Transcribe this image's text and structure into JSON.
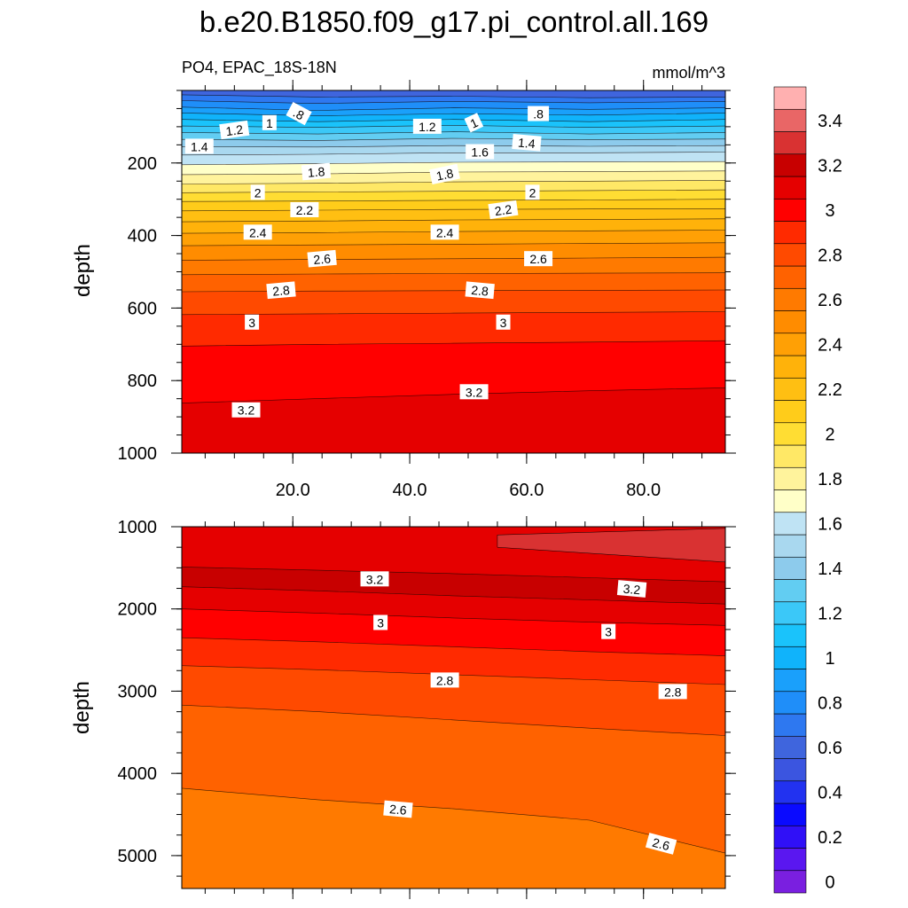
{
  "title": "b.e20.B1850.f09_g17.pi_control.all.169",
  "chart_data": [
    {
      "id": "upper",
      "type": "contour",
      "variable_label": "PO4, EPAC_18S-18N",
      "units": "mmol/m^3",
      "xlim": [
        1,
        94
      ],
      "x_ticks": [
        20,
        40,
        60,
        80
      ],
      "x_tick_labels": [
        "20.0",
        "40.0",
        "60.0",
        "80.0"
      ],
      "ylabel": "depth",
      "ylim": [
        0,
        1000
      ],
      "y_ticks": [
        200,
        400,
        600,
        800,
        1000
      ],
      "y_tick_labels": [
        "200",
        "400",
        "600",
        "800",
        "1000"
      ],
      "contours": [
        {
          "level": 0.6,
          "y": [
            0,
            0,
            0,
            0,
            0
          ]
        },
        {
          "level": 0.7,
          "y": [
            12,
            18,
            16,
            20,
            18
          ]
        },
        {
          "level": 0.8,
          "y": [
            28,
            36,
            30,
            34,
            30
          ]
        },
        {
          "level": 0.9,
          "y": [
            46,
            55,
            48,
            52,
            48
          ]
        },
        {
          "level": 1.0,
          "y": [
            62,
            70,
            64,
            68,
            62
          ]
        },
        {
          "level": 1.1,
          "y": [
            80,
            86,
            80,
            86,
            80
          ]
        },
        {
          "level": 1.2,
          "y": [
            98,
            102,
            96,
            102,
            98
          ]
        },
        {
          "level": 1.3,
          "y": [
            116,
            120,
            114,
            120,
            116
          ]
        },
        {
          "level": 1.4,
          "y": [
            135,
            138,
            132,
            136,
            134
          ]
        },
        {
          "level": 1.5,
          "y": [
            155,
            156,
            152,
            154,
            152
          ]
        },
        {
          "level": 1.6,
          "y": [
            178,
            176,
            172,
            172,
            170
          ]
        },
        {
          "level": 1.7,
          "y": [
            205,
            202,
            198,
            197,
            196
          ]
        },
        {
          "level": 1.8,
          "y": [
            232,
            230,
            225,
            224,
            222
          ]
        },
        {
          "level": 1.9,
          "y": [
            258,
            256,
            252,
            250,
            248
          ]
        },
        {
          "level": 2.0,
          "y": [
            282,
            280,
            278,
            276,
            274
          ]
        },
        {
          "level": 2.1,
          "y": [
            306,
            305,
            303,
            302,
            300
          ]
        },
        {
          "level": 2.2,
          "y": [
            332,
            330,
            328,
            327,
            326
          ]
        },
        {
          "level": 2.3,
          "y": [
            362,
            360,
            357,
            356,
            354
          ]
        },
        {
          "level": 2.4,
          "y": [
            394,
            392,
            389,
            387,
            385
          ]
        },
        {
          "level": 2.5,
          "y": [
            428,
            426,
            424,
            422,
            420
          ]
        },
        {
          "level": 2.6,
          "y": [
            468,
            466,
            464,
            462,
            460
          ]
        },
        {
          "level": 2.7,
          "y": [
            508,
            506,
            505,
            504,
            503
          ]
        },
        {
          "level": 2.8,
          "y": [
            555,
            553,
            552,
            551,
            550
          ]
        },
        {
          "level": 2.9,
          "y": [
            618,
            616,
            614,
            612,
            610
          ]
        },
        {
          "level": 3.0,
          "y": [
            705,
            700,
            697,
            694,
            690
          ]
        },
        {
          "level": 3.1,
          "y": [
            862,
            850,
            838,
            828,
            820
          ]
        }
      ],
      "contour_labels": [
        {
          "text": ".8",
          "x": 21,
          "y": 65,
          "angle": 28
        },
        {
          "text": "1",
          "x": 16,
          "y": 90,
          "angle": 0
        },
        {
          "text": "1.2",
          "x": 10,
          "y": 110,
          "angle": -8
        },
        {
          "text": "1.4",
          "x": 4,
          "y": 155,
          "angle": 0
        },
        {
          "text": "1.2",
          "x": 43,
          "y": 100,
          "angle": 0
        },
        {
          "text": "1",
          "x": 51,
          "y": 90,
          "angle": -25
        },
        {
          "text": ".8",
          "x": 62,
          "y": 65,
          "angle": 0
        },
        {
          "text": "1.4",
          "x": 60,
          "y": 145,
          "angle": 5
        },
        {
          "text": "1.6",
          "x": 52,
          "y": 170,
          "angle": 0
        },
        {
          "text": "1.8",
          "x": 24,
          "y": 225,
          "angle": -5
        },
        {
          "text": "1.8",
          "x": 46,
          "y": 232,
          "angle": -12
        },
        {
          "text": "2",
          "x": 14,
          "y": 282,
          "angle": 0
        },
        {
          "text": "2",
          "x": 61,
          "y": 282,
          "angle": 0
        },
        {
          "text": "2.2",
          "x": 22,
          "y": 330,
          "angle": 0
        },
        {
          "text": "2.2",
          "x": 56,
          "y": 330,
          "angle": -8
        },
        {
          "text": "2.4",
          "x": 14,
          "y": 392,
          "angle": 0
        },
        {
          "text": "2.4",
          "x": 46,
          "y": 392,
          "angle": 0
        },
        {
          "text": "2.6",
          "x": 25,
          "y": 465,
          "angle": -5
        },
        {
          "text": "2.6",
          "x": 62,
          "y": 465,
          "angle": 0
        },
        {
          "text": "2.8",
          "x": 18,
          "y": 552,
          "angle": -5
        },
        {
          "text": "2.8",
          "x": 52,
          "y": 552,
          "angle": 5
        },
        {
          "text": "3",
          "x": 13,
          "y": 640,
          "angle": 0
        },
        {
          "text": "3",
          "x": 56,
          "y": 640,
          "angle": 0
        },
        {
          "text": "3.2",
          "x": 12,
          "y": 882,
          "angle": 0
        },
        {
          "text": "3.2",
          "x": 51,
          "y": 832,
          "angle": 0
        }
      ]
    },
    {
      "id": "lower",
      "type": "contour",
      "variable_label": "",
      "units": "",
      "xlim": [
        1,
        94
      ],
      "x_ticks": [
        20,
        40,
        60,
        80
      ],
      "x_tick_labels": [],
      "ylabel": "depth",
      "ylim": [
        1000,
        5400
      ],
      "y_ticks": [
        1000,
        2000,
        3000,
        4000,
        5000
      ],
      "y_tick_labels": [
        "1000",
        "2000",
        "3000",
        "4000",
        "5000"
      ],
      "contours": [
        {
          "level": 3.1,
          "y": [
            1000,
            1000,
            1000,
            1000,
            1000
          ]
        },
        {
          "level": 3.2,
          "y": [
            1490,
            1530,
            1570,
            1620,
            1670
          ]
        },
        {
          "level": 3.1,
          "y": [
            1730,
            1780,
            1840,
            1890,
            1940
          ]
        },
        {
          "level": 3.0,
          "y": [
            2000,
            2050,
            2110,
            2160,
            2200
          ]
        },
        {
          "level": 2.9,
          "y": [
            2350,
            2400,
            2460,
            2520,
            2570
          ]
        },
        {
          "level": 2.8,
          "y": [
            2690,
            2740,
            2800,
            2860,
            2920
          ]
        },
        {
          "level": 2.7,
          "y": [
            3170,
            3250,
            3350,
            3450,
            3540
          ]
        },
        {
          "level": 2.6,
          "y": [
            4180,
            4320,
            4430,
            4570,
            4970
          ]
        }
      ],
      "contour_labels": [
        {
          "text": "3.2",
          "x": 34,
          "y": 1640,
          "angle": 0
        },
        {
          "text": "3.2",
          "x": 78,
          "y": 1760,
          "angle": 5
        },
        {
          "text": "3",
          "x": 35,
          "y": 2170,
          "angle": 0
        },
        {
          "text": "3",
          "x": 74,
          "y": 2280,
          "angle": 0
        },
        {
          "text": "2.8",
          "x": 46,
          "y": 2870,
          "angle": 0
        },
        {
          "text": "2.8",
          "x": 85,
          "y": 3010,
          "angle": 0
        },
        {
          "text": "2.6",
          "x": 38,
          "y": 4440,
          "angle": 5
        },
        {
          "text": "2.6",
          "x": 83,
          "y": 4860,
          "angle": 15
        }
      ]
    }
  ],
  "colorbar": {
    "levels": [
      0,
      0.1,
      0.2,
      0.3,
      0.4,
      0.5,
      0.6,
      0.7,
      0.8,
      0.9,
      1.0,
      1.1,
      1.2,
      1.3,
      1.4,
      1.5,
      1.6,
      1.7,
      1.8,
      1.9,
      2.0,
      2.1,
      2.2,
      2.3,
      2.4,
      2.5,
      2.6,
      2.7,
      2.8,
      2.9,
      3.0,
      3.1,
      3.2,
      3.3,
      3.4,
      3.5
    ],
    "tick_labels": [
      {
        "label": "3.4",
        "value": 3.4
      },
      {
        "label": "3.2",
        "value": 3.2
      },
      {
        "label": "3",
        "value": 3.0
      },
      {
        "label": "2.8",
        "value": 2.8
      },
      {
        "label": "2.6",
        "value": 2.6
      },
      {
        "label": "2.4",
        "value": 2.4
      },
      {
        "label": "2.2",
        "value": 2.2
      },
      {
        "label": "2",
        "value": 2.0
      },
      {
        "label": "1.8",
        "value": 1.8
      },
      {
        "label": "1.6",
        "value": 1.6
      },
      {
        "label": "1.4",
        "value": 1.4
      },
      {
        "label": "1.2",
        "value": 1.2
      },
      {
        "label": "1",
        "value": 1.0
      },
      {
        "label": "0.8",
        "value": 0.8
      },
      {
        "label": "0.6",
        "value": 0.6
      },
      {
        "label": "0.4",
        "value": 0.4
      },
      {
        "label": "0.2",
        "value": 0.2
      },
      {
        "label": "0",
        "value": 0.0
      }
    ],
    "colors": [
      "#7a1fe0",
      "#5a17f0",
      "#3010f7",
      "#0a0aff",
      "#2232f0",
      "#3b55e0",
      "#3f65dd",
      "#2e78f0",
      "#1f8ef9",
      "#1aa0fb",
      "#10b3fb",
      "#1ac3fb",
      "#3bc8f8",
      "#62cdf2",
      "#8dcbec",
      "#a9d8ef",
      "#bfe3f4",
      "#ffffc8",
      "#fff39c",
      "#ffe866",
      "#ffdd33",
      "#ffcc1a",
      "#ffbf12",
      "#ffb20a",
      "#ffa005",
      "#ff8c00",
      "#ff7a00",
      "#ff6200",
      "#ff4a00",
      "#ff2a00",
      "#ff0000",
      "#e50000",
      "#c80000",
      "#d93232",
      "#e96666",
      "#ffb0b0"
    ]
  }
}
